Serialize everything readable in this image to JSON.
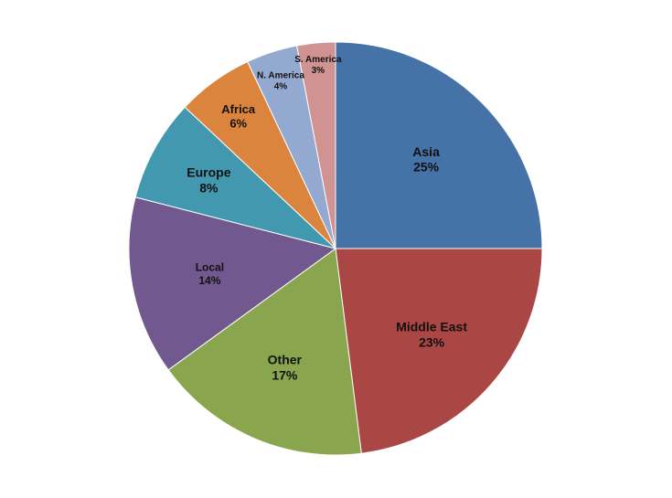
{
  "chart_data": {
    "type": "pie",
    "title": "",
    "series": [
      {
        "values": [
          25,
          23,
          17,
          14,
          8,
          6,
          4,
          3
        ],
        "categories": [
          "Asia",
          "Middle East",
          "Other",
          "Local",
          "Europe",
          "Africa",
          "N. America",
          "S. America"
        ],
        "data_labels": [
          "25%",
          "23%",
          "17%",
          "14%",
          "8%",
          "6%",
          "4%",
          "3%"
        ],
        "colors": [
          "#4572A7",
          "#AA4643",
          "#89A54E",
          "#71588F",
          "#4198AF",
          "#DB843D",
          "#93A9CF",
          "#D19392"
        ]
      }
    ],
    "start_angle_deg": 0,
    "direction": "clockwise",
    "legend": "none"
  }
}
